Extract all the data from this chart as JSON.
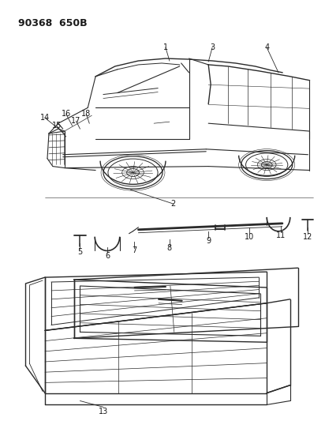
{
  "title": "90368 650B",
  "bg_color": "#ffffff",
  "text_color": "#1a1a1a",
  "line_color": "#2a2a2a",
  "fig_width": 4.12,
  "fig_height": 5.33,
  "dpi": 100
}
